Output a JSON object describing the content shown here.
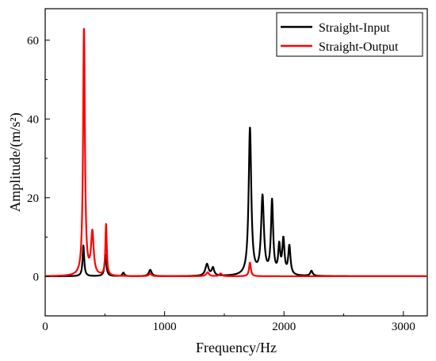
{
  "chart_data": {
    "type": "line",
    "xlabel": "Frequency/Hz",
    "ylabel": "Amplitude/(m/s²)",
    "xlim": [
      0,
      3200
    ],
    "ylim": [
      -10,
      68
    ],
    "xticks": [
      0,
      1000,
      2000,
      3000
    ],
    "yticks": [
      0,
      20,
      40,
      60
    ],
    "xtick_labels": [
      "0",
      "1000",
      "2000",
      "3000"
    ],
    "ytick_labels": [
      "0",
      "20",
      "40",
      "60"
    ],
    "legend_position": "top-right",
    "series": [
      {
        "name": "Straight-Input",
        "color": "#000000",
        "peaks": [
          {
            "x": 320,
            "y": 7.8,
            "width": 8
          },
          {
            "x": 505,
            "y": 5.5,
            "width": 9
          },
          {
            "x": 655,
            "y": 0.9,
            "width": 10
          },
          {
            "x": 880,
            "y": 1.6,
            "width": 14
          },
          {
            "x": 1355,
            "y": 3.0,
            "width": 16
          },
          {
            "x": 1405,
            "y": 2.0,
            "width": 12
          },
          {
            "x": 1715,
            "y": 37.5,
            "width": 13
          },
          {
            "x": 1820,
            "y": 19.8,
            "width": 14
          },
          {
            "x": 1900,
            "y": 18.6,
            "width": 11
          },
          {
            "x": 1960,
            "y": 7.0,
            "width": 10
          },
          {
            "x": 1995,
            "y": 8.8,
            "width": 11
          },
          {
            "x": 2045,
            "y": 7.3,
            "width": 11
          },
          {
            "x": 2230,
            "y": 1.3,
            "width": 12
          }
        ]
      },
      {
        "name": "Straight-Output",
        "color": "#ff0000",
        "peaks": [
          {
            "x": 325,
            "y": 63.2,
            "width": 9
          },
          {
            "x": 395,
            "y": 10.8,
            "width": 13
          },
          {
            "x": 510,
            "y": 13.0,
            "width": 7
          },
          {
            "x": 880,
            "y": 0.7,
            "width": 12
          },
          {
            "x": 1360,
            "y": 1.0,
            "width": 14
          },
          {
            "x": 1470,
            "y": 0.7,
            "width": 12
          },
          {
            "x": 1715,
            "y": 3.5,
            "width": 9
          }
        ]
      }
    ]
  }
}
